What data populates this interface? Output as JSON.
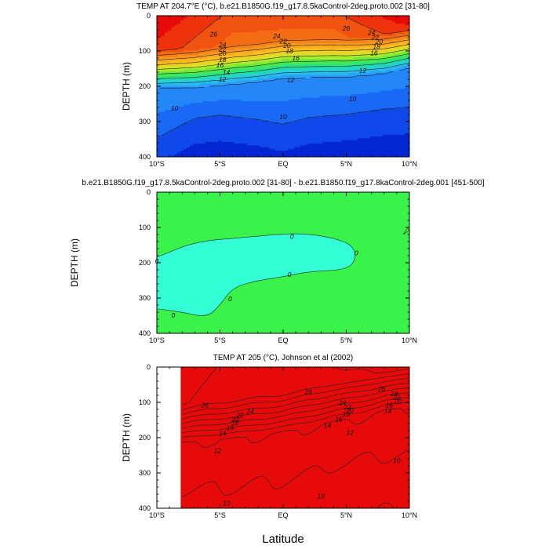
{
  "chart_data": [
    {
      "type": "heatmap",
      "title": "TEMP AT 204.7°E (°C), b.e21.B1850G.f19_g17.8.5kaControl-2deg.proto.002 [31-80]",
      "ylabel": "DEPTH (m)",
      "xlabel": "",
      "xticks": [
        "10°S",
        "5°S",
        "EQ",
        "5°N",
        "10°N"
      ],
      "yticks": [
        "0",
        "100",
        "200",
        "300",
        "400"
      ],
      "xlim": [
        -10,
        10
      ],
      "ylim": [
        0,
        400
      ],
      "contour_interval": 1,
      "thermocline_depth_m": [
        [
          -10,
          170
        ],
        [
          -7,
          168
        ],
        [
          -5,
          162
        ],
        [
          -2,
          152
        ],
        [
          0,
          142
        ],
        [
          2,
          140
        ],
        [
          5,
          138
        ],
        [
          8,
          128
        ],
        [
          10,
          112
        ]
      ],
      "deep_cold_pool_depth_m": [
        [
          -10,
          360
        ],
        [
          -7,
          300
        ],
        [
          -5,
          290
        ],
        [
          -2,
          305
        ],
        [
          0,
          320
        ],
        [
          2,
          300
        ],
        [
          5,
          290
        ],
        [
          8,
          275
        ],
        [
          10,
          270
        ]
      ],
      "contour_labels": [
        {
          "value": "26",
          "lat": -5.5,
          "depth": 52
        },
        {
          "value": "26",
          "lat": 5.0,
          "depth": 36
        },
        {
          "value": "24",
          "lat": -4.8,
          "depth": 82
        },
        {
          "value": "24",
          "lat": -0.5,
          "depth": 58
        },
        {
          "value": "24",
          "lat": 7.0,
          "depth": 48
        },
        {
          "value": "22",
          "lat": -4.8,
          "depth": 94
        },
        {
          "value": "22",
          "lat": 0.0,
          "depth": 72
        },
        {
          "value": "22",
          "lat": 7.3,
          "depth": 61
        },
        {
          "value": "20",
          "lat": -4.8,
          "depth": 107
        },
        {
          "value": "20",
          "lat": 0.3,
          "depth": 84
        },
        {
          "value": "20",
          "lat": 7.6,
          "depth": 73
        },
        {
          "value": "18",
          "lat": -4.8,
          "depth": 124
        },
        {
          "value": "18",
          "lat": 0.5,
          "depth": 100
        },
        {
          "value": "18",
          "lat": 7.4,
          "depth": 88
        },
        {
          "value": "16",
          "lat": -5.0,
          "depth": 140
        },
        {
          "value": "16",
          "lat": 1.0,
          "depth": 120
        },
        {
          "value": "16",
          "lat": 7.2,
          "depth": 105
        },
        {
          "value": "14",
          "lat": -4.5,
          "depth": 160
        },
        {
          "value": "12",
          "lat": -4.8,
          "depth": 180
        },
        {
          "value": "12",
          "lat": 0.6,
          "depth": 182
        },
        {
          "value": "12",
          "lat": 6.3,
          "depth": 155
        },
        {
          "value": "10",
          "lat": -8.6,
          "depth": 262
        },
        {
          "value": "10",
          "lat": 0.0,
          "depth": 287
        },
        {
          "value": "10",
          "lat": 5.5,
          "depth": 235
        }
      ]
    },
    {
      "type": "heatmap",
      "title": "b.e21.B1850G.f19_g17.8.5kaControl-2deg.proto.002 [31-80] - b.e21.B1850.f19_g17.8kaControl-2deg.001 [451-500]",
      "ylabel": "DEPTH (m)",
      "xlabel": "",
      "xticks": [
        "10°S",
        "5°S",
        "EQ",
        "5°N",
        "10°N"
      ],
      "yticks": [
        "0",
        "100",
        "200",
        "300",
        "400"
      ],
      "xlim": [
        -10,
        10
      ],
      "ylim": [
        0,
        400
      ],
      "negative_region_outline": [
        [
          -10,
          185
        ],
        [
          -7,
          140
        ],
        [
          -3,
          128
        ],
        [
          0,
          118
        ],
        [
          2,
          118
        ],
        [
          4,
          130
        ],
        [
          5.5,
          150
        ],
        [
          5.8,
          190
        ],
        [
          5,
          220
        ],
        [
          2,
          225
        ],
        [
          0,
          240
        ],
        [
          -2,
          250
        ],
        [
          -4,
          270
        ],
        [
          -5,
          320
        ],
        [
          -6,
          355
        ],
        [
          -8,
          340
        ],
        [
          -10,
          330
        ]
      ],
      "positive_region_outline": [
        [
          9.5,
          120
        ],
        [
          10,
          95
        ],
        [
          10,
          150
        ]
      ],
      "contour_labels": [
        {
          "value": "0",
          "lat": -10.0,
          "depth": 195
        },
        {
          "value": "0",
          "lat": 0.7,
          "depth": 126
        },
        {
          "value": "0",
          "lat": 5.8,
          "depth": 172
        },
        {
          "value": "0",
          "lat": 0.5,
          "depth": 233
        },
        {
          "value": "0",
          "lat": -4.2,
          "depth": 302
        },
        {
          "value": "0",
          "lat": -8.7,
          "depth": 349
        }
      ]
    },
    {
      "type": "heatmap",
      "title": "TEMP AT 205 (°C), Johnson et al (2002)",
      "ylabel": "DEPTH (m)",
      "xlabel": "Latitude",
      "xticks": [
        "10°S",
        "5°S",
        "EQ",
        "5°N",
        "10°N"
      ],
      "yticks": [
        "0",
        "100",
        "200",
        "300",
        "400"
      ],
      "xlim": [
        -10,
        10
      ],
      "ylim": [
        0,
        400
      ],
      "data_lat_range": [
        -8,
        10
      ],
      "thermocline_depth_m": [
        [
          -8,
          180
        ],
        [
          -6,
          172
        ],
        [
          -4,
          168
        ],
        [
          -2,
          158
        ],
        [
          0,
          150
        ],
        [
          2,
          135
        ],
        [
          4,
          120
        ],
        [
          6,
          108
        ],
        [
          8,
          88
        ],
        [
          10,
          78
        ]
      ],
      "deep_cold_pool_depth_m": [
        [
          -8,
          360
        ],
        [
          -6,
          360
        ],
        [
          -4,
          355
        ],
        [
          -2,
          345
        ],
        [
          0,
          335
        ],
        [
          2,
          320
        ],
        [
          4,
          290
        ],
        [
          6,
          275
        ],
        [
          8,
          265
        ],
        [
          10,
          260
        ]
      ],
      "contour_labels": [
        {
          "value": "26",
          "lat": -6.2,
          "depth": 108
        },
        {
          "value": "26",
          "lat": 2.0,
          "depth": 70
        },
        {
          "value": "26",
          "lat": 7.8,
          "depth": 62
        },
        {
          "value": "24",
          "lat": -2.6,
          "depth": 125
        },
        {
          "value": "24",
          "lat": 4.7,
          "depth": 101
        },
        {
          "value": "24",
          "lat": 8.8,
          "depth": 76
        },
        {
          "value": "22",
          "lat": -3.4,
          "depth": 137
        },
        {
          "value": "22",
          "lat": 5.1,
          "depth": 113
        },
        {
          "value": "22",
          "lat": 9.0,
          "depth": 86
        },
        {
          "value": "20",
          "lat": -3.8,
          "depth": 149
        },
        {
          "value": "20",
          "lat": 5.3,
          "depth": 122
        },
        {
          "value": "20",
          "lat": 9.1,
          "depth": 98
        },
        {
          "value": "18",
          "lat": -3.8,
          "depth": 158
        },
        {
          "value": "18",
          "lat": 5.0,
          "depth": 133
        },
        {
          "value": "16",
          "lat": -4.2,
          "depth": 172
        },
        {
          "value": "16",
          "lat": 4.4,
          "depth": 148
        },
        {
          "value": "16",
          "lat": 8.4,
          "depth": 108
        },
        {
          "value": "14",
          "lat": -4.8,
          "depth": 188
        },
        {
          "value": "14",
          "lat": 3.5,
          "depth": 165
        },
        {
          "value": "14",
          "lat": 8.3,
          "depth": 124
        },
        {
          "value": "12",
          "lat": -5.2,
          "depth": 237
        },
        {
          "value": "12",
          "lat": 5.3,
          "depth": 185
        },
        {
          "value": "10",
          "lat": 9.0,
          "depth": 264
        },
        {
          "value": "10",
          "lat": 3.0,
          "depth": 365
        },
        {
          "value": "10",
          "lat": -4.5,
          "depth": 385
        }
      ]
    }
  ]
}
